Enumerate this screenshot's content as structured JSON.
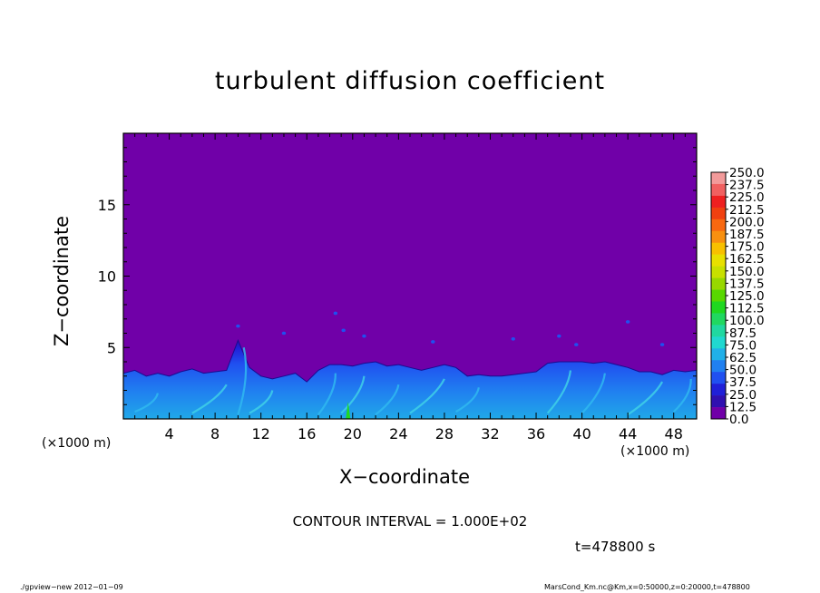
{
  "chart_data": {
    "type": "heatmap",
    "title": "turbulent diffusion coefficient",
    "xlabel": "X−coordinate",
    "ylabel": "Z−coordinate",
    "x_unit_label": "(×1000 m)",
    "xlim": [
      0,
      50
    ],
    "ylim": [
      0,
      20
    ],
    "x_ticks": [
      4,
      8,
      12,
      16,
      20,
      24,
      28,
      32,
      36,
      40,
      44,
      48
    ],
    "y_ticks": [
      5,
      10,
      15
    ],
    "colorbar_levels": [
      "250.0",
      "237.5",
      "225.0",
      "212.5",
      "200.0",
      "187.5",
      "175.0",
      "162.5",
      "150.0",
      "137.5",
      "125.0",
      "112.5",
      "100.0",
      "87.5",
      "75.0",
      "62.5",
      "50.0",
      "37.5",
      "25.0",
      "12.5",
      "0.0"
    ],
    "colorbar_colors": [
      "#f29a9a",
      "#f06060",
      "#ee2020",
      "#f04010",
      "#f86810",
      "#f89010",
      "#f8c000",
      "#e8e000",
      "#c8e000",
      "#98d800",
      "#58d800",
      "#20d820",
      "#20d860",
      "#20d8a0",
      "#20d8d0",
      "#20b0e8",
      "#2080f0",
      "#2050f0",
      "#2020d8",
      "#3010b0",
      "#7000a8"
    ],
    "background_value": 0.0,
    "boundary_layer_top": [
      [
        0,
        3.2
      ],
      [
        1,
        3.4
      ],
      [
        2,
        3.0
      ],
      [
        3,
        3.2
      ],
      [
        4,
        3.0
      ],
      [
        5,
        3.3
      ],
      [
        6,
        3.5
      ],
      [
        7,
        3.2
      ],
      [
        8,
        3.3
      ],
      [
        9,
        3.4
      ],
      [
        10,
        5.5
      ],
      [
        11,
        3.6
      ],
      [
        12,
        3.0
      ],
      [
        13,
        2.8
      ],
      [
        14,
        3.0
      ],
      [
        15,
        3.2
      ],
      [
        16,
        2.6
      ],
      [
        17,
        3.4
      ],
      [
        18,
        3.8
      ],
      [
        19,
        3.8
      ],
      [
        20,
        3.7
      ],
      [
        21,
        3.9
      ],
      [
        22,
        4.0
      ],
      [
        23,
        3.7
      ],
      [
        24,
        3.8
      ],
      [
        25,
        3.6
      ],
      [
        26,
        3.4
      ],
      [
        27,
        3.6
      ],
      [
        28,
        3.8
      ],
      [
        29,
        3.6
      ],
      [
        30,
        3.0
      ],
      [
        31,
        3.1
      ],
      [
        32,
        3.0
      ],
      [
        33,
        3.0
      ],
      [
        34,
        3.1
      ],
      [
        35,
        3.2
      ],
      [
        36,
        3.3
      ],
      [
        37,
        3.9
      ],
      [
        38,
        4.0
      ],
      [
        39,
        4.0
      ],
      [
        40,
        4.0
      ],
      [
        41,
        3.9
      ],
      [
        42,
        4.0
      ],
      [
        43,
        3.8
      ],
      [
        44,
        3.6
      ],
      [
        45,
        3.3
      ],
      [
        46,
        3.3
      ],
      [
        47,
        3.1
      ],
      [
        48,
        3.4
      ],
      [
        49,
        3.3
      ],
      [
        50,
        3.4
      ]
    ]
  },
  "contour_interval": "CONTOUR INTERVAL = 1.000E+02",
  "time_label": "t=478800 s",
  "footer": {
    "left": "./gpview−new  2012−01−09",
    "right": "MarsCond_Km.nc@Km,x=0:50000,z=0:20000,t=478800"
  },
  "colors": {
    "background_field": "#7000a8",
    "axis": "#000000"
  }
}
